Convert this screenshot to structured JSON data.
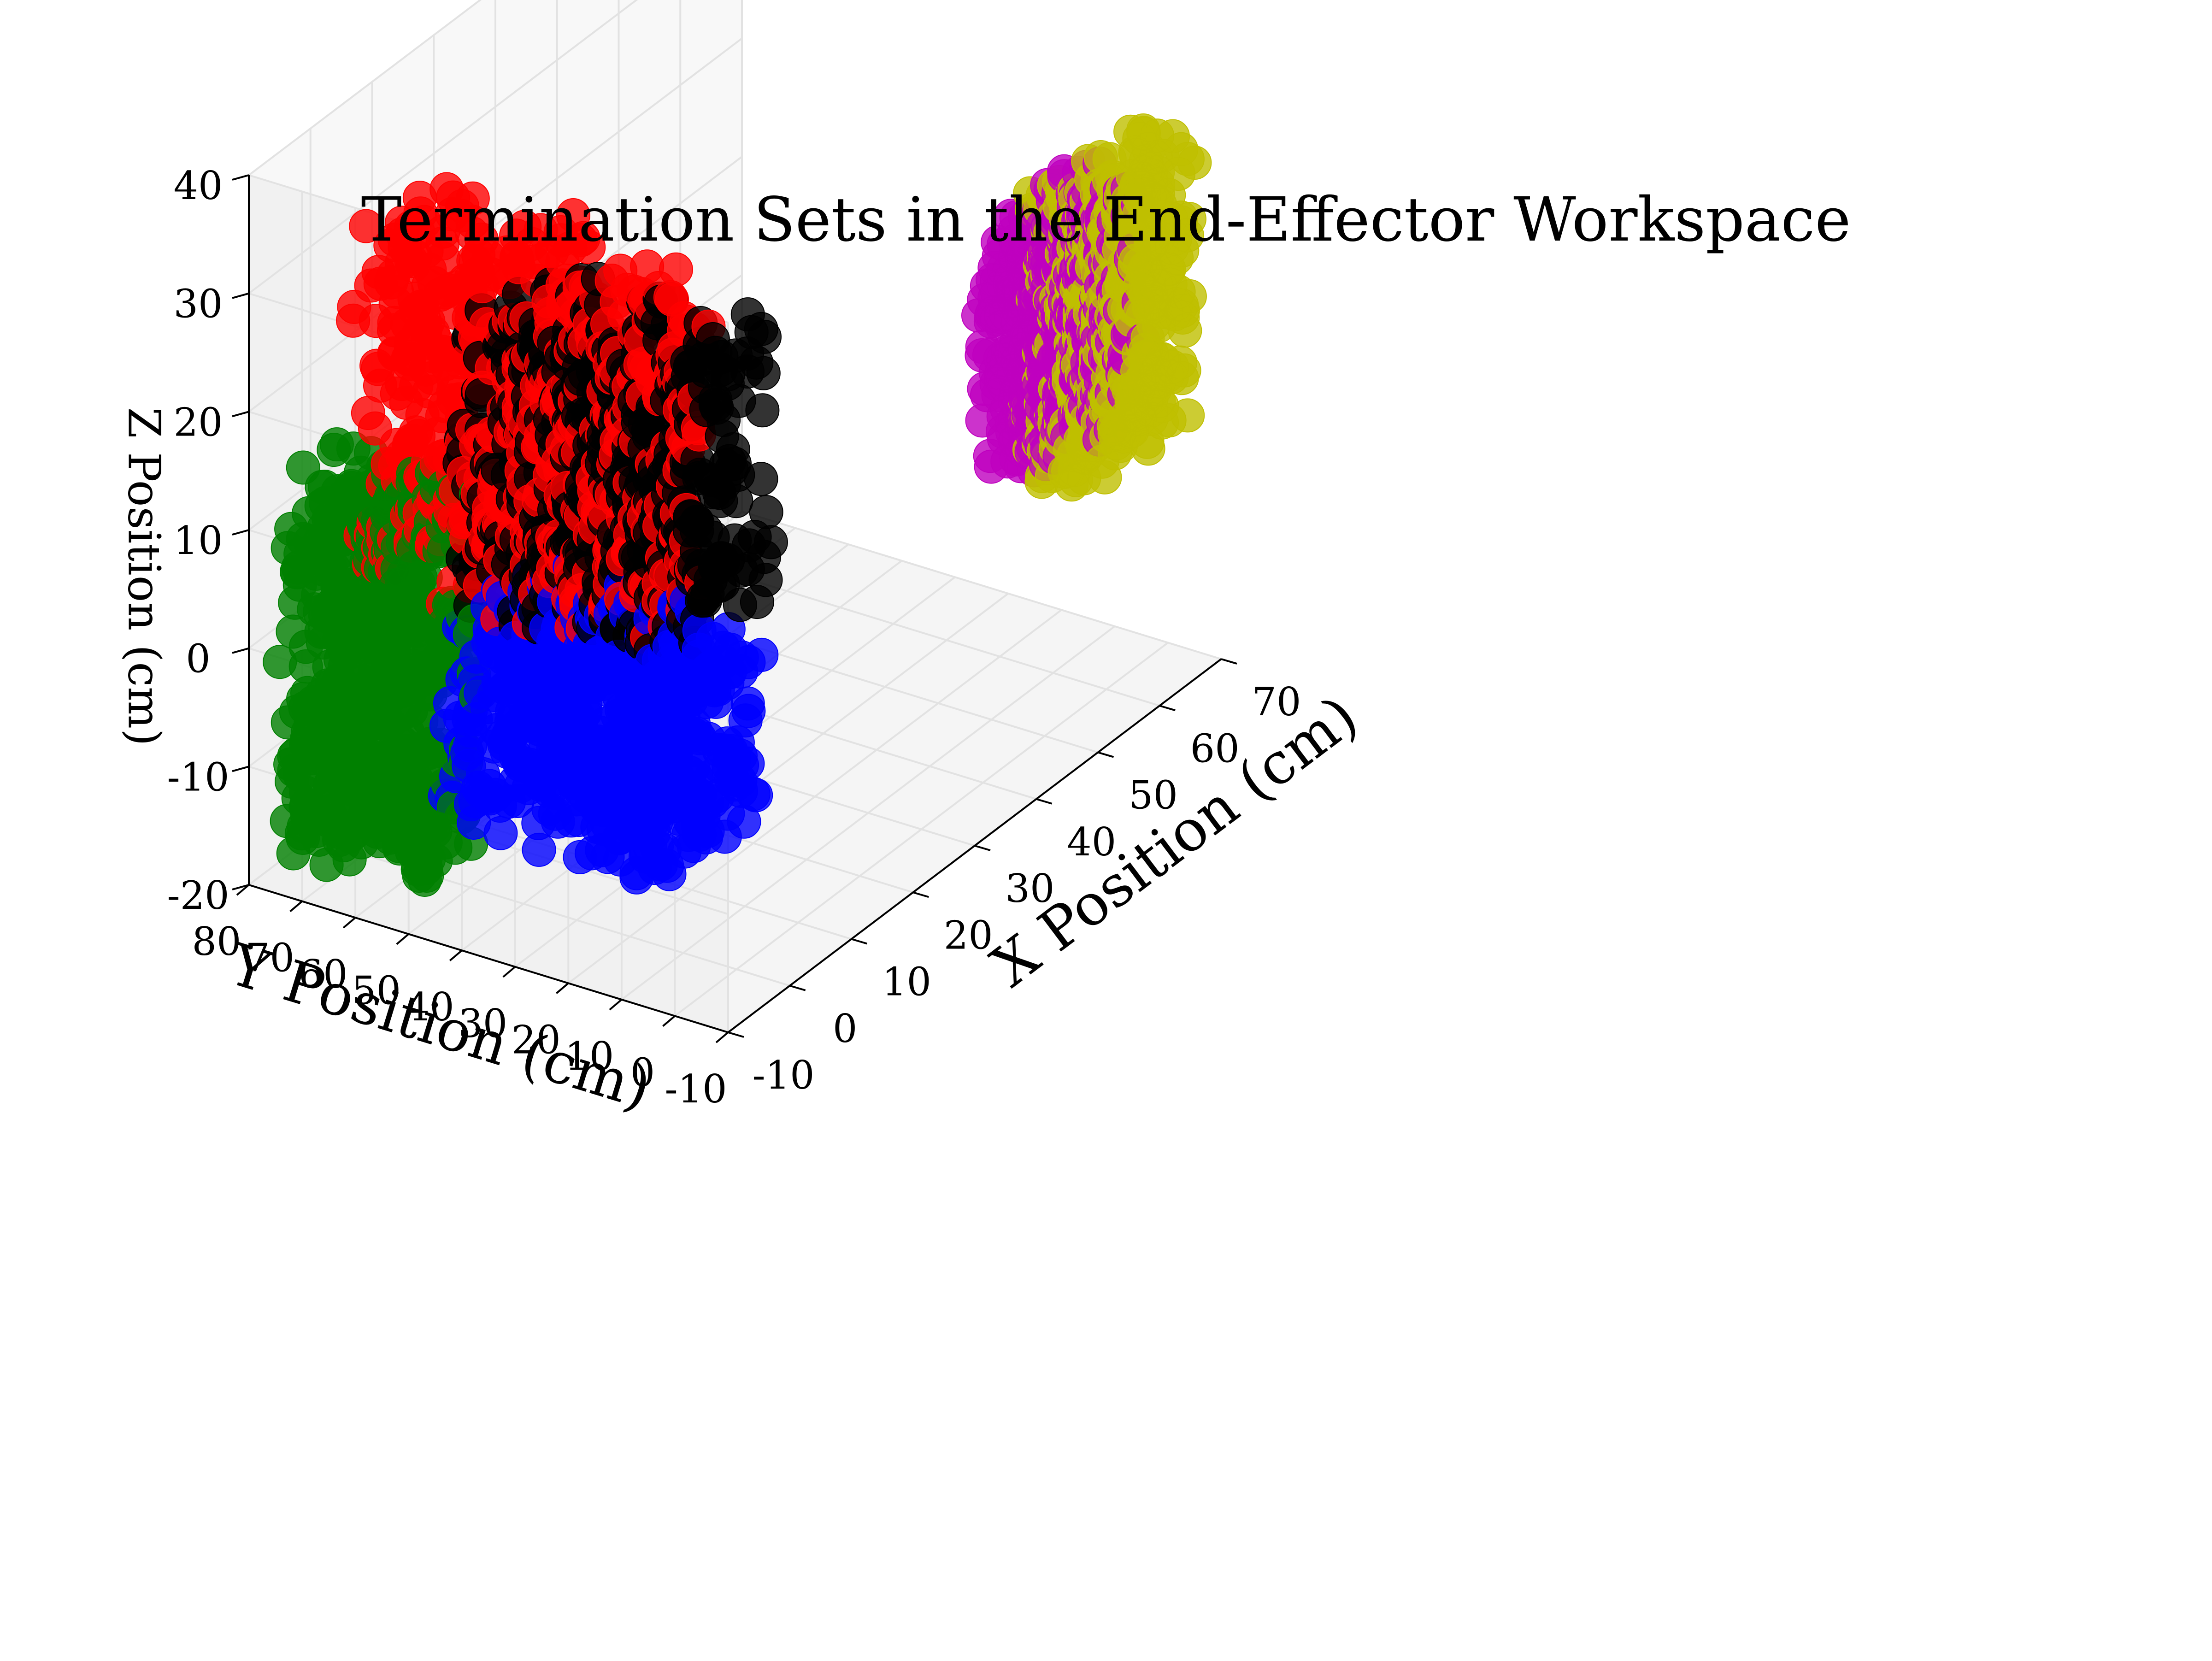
{
  "chart_data": {
    "type": "scatter",
    "projection": "3d",
    "title": "Termination Sets in the End-Effector Workspace",
    "xlabel": "X Position (cm)",
    "ylabel": "Y Position (cm)",
    "zlabel": "Z Position (cm)",
    "xlim": [
      -10,
      70
    ],
    "ylim": [
      -10,
      80
    ],
    "zlim": [
      -20,
      40
    ],
    "xticks": [
      -10,
      0,
      10,
      20,
      30,
      40,
      50,
      60,
      70
    ],
    "yticks": [
      -10,
      0,
      10,
      20,
      30,
      40,
      50,
      60,
      70,
      80
    ],
    "zticks": [
      -20,
      -10,
      0,
      10,
      20,
      30,
      40
    ],
    "xtick_labels": [
      "-10",
      "0",
      "10",
      "20",
      "30",
      "40",
      "50",
      "60",
      "70"
    ],
    "ytick_labels": [
      "-10",
      "0",
      "10",
      "20",
      "30",
      "40",
      "50",
      "60",
      "70",
      "80"
    ],
    "ztick_labels": [
      "-20",
      "-10",
      "0",
      "10",
      "20",
      "30",
      "40"
    ],
    "grid": true,
    "series": [
      {
        "name": "green set",
        "color": "#008000",
        "x": [
          -8,
          2
        ],
        "y": [
          50,
          78
        ],
        "z": [
          -18,
          14
        ]
      },
      {
        "name": "red set",
        "color": "#ff0000",
        "x": [
          -10,
          4
        ],
        "y": [
          8,
          62
        ],
        "z": [
          8,
          38
        ]
      },
      {
        "name": "blue set",
        "color": "#0000ff",
        "x": [
          -4,
          12
        ],
        "y": [
          8,
          52
        ],
        "z": [
          -14,
          4
        ]
      },
      {
        "name": "black set",
        "color": "#000000",
        "x": [
          -2,
          14
        ],
        "y": [
          8,
          52
        ],
        "z": [
          4,
          28
        ]
      },
      {
        "name": "magenta set",
        "color": "#bf00bf",
        "x": [
          40,
          58
        ],
        "y": [
          -10,
          2
        ],
        "z": [
          6,
          26
        ]
      },
      {
        "name": "yellow set",
        "color": "#bfbf00",
        "x": [
          48,
          66
        ],
        "y": [
          -10,
          2
        ],
        "z": [
          2,
          26
        ]
      }
    ]
  }
}
